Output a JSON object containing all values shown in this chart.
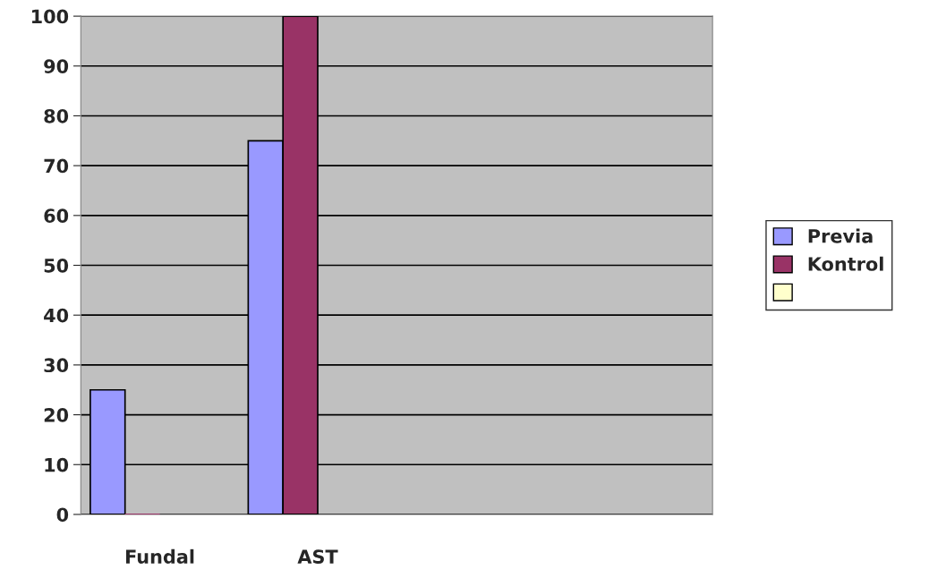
{
  "chart_data": {
    "type": "bar",
    "categories": [
      "Fundal",
      "AST",
      null,
      null
    ],
    "series": [
      {
        "name": "Previa",
        "color": "#9999ff",
        "values": [
          25,
          75,
          null,
          null
        ]
      },
      {
        "name": "Kontrol",
        "color": "#993366",
        "values": [
          0,
          100,
          null,
          null
        ]
      },
      {
        "color": "#ffffcc",
        "values": [
          null,
          null,
          null,
          null
        ]
      }
    ],
    "ylim": [
      0,
      100
    ],
    "yticks": [
      0,
      10,
      20,
      30,
      40,
      50,
      60,
      70,
      80,
      90,
      100
    ],
    "grid": "y",
    "legend": "right"
  }
}
